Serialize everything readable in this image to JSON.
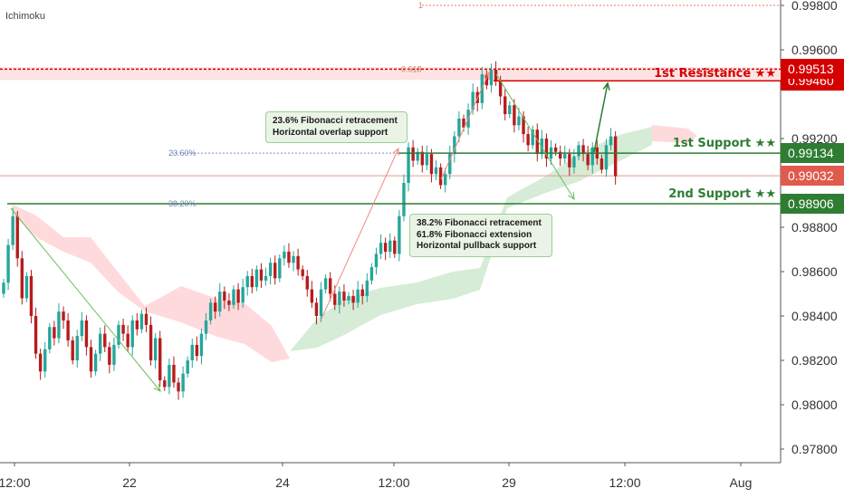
{
  "indicator_label": "Ichimoku",
  "colors": {
    "up": "#26a69a",
    "down": "#b71c1c",
    "resistance": "#d50000",
    "support": "#2e7d32",
    "current": "#e05a4e",
    "cloud_bull": "#c8e6c9",
    "cloud_bear": "#ffcdd2"
  },
  "chart_data": {
    "type": "candlestick",
    "title": "",
    "xlabel": "",
    "ylabel": "",
    "ylim": [
      0.9772,
      0.9982
    ],
    "x_ticks": [
      "12:00",
      "22",
      "24",
      "12:00",
      "29",
      "12:00",
      "Aug"
    ],
    "y_ticks": [
      "0.99800",
      "0.99600",
      "0.99200",
      "0.98800",
      "0.98600",
      "0.98400",
      "0.98200",
      "0.98000",
      "0.97800"
    ],
    "levels": [
      {
        "label": "1st Resistance ★★",
        "value": "0.99460",
        "line_value": 0.9946,
        "role": "resistance"
      },
      {
        "label": "",
        "value": "0.99513",
        "line_value": 0.99513,
        "role": "fib-618"
      },
      {
        "label": "1st Support ★★",
        "value": "0.99134",
        "line_value": 0.99134,
        "role": "support"
      },
      {
        "label": "",
        "value": "0.99032",
        "line_value": 0.99032,
        "role": "current"
      },
      {
        "label": "2nd Support ★★",
        "value": "0.98906",
        "line_value": 0.98906,
        "role": "support"
      }
    ],
    "fib_labels": [
      {
        "label": "1",
        "value": 0.998
      },
      {
        "label": "0.618",
        "value": 0.99513
      },
      {
        "label": "23.60%",
        "value": 0.99134
      },
      {
        "label": "38.20%",
        "value": 0.98906
      }
    ],
    "candles_close": [
      0.9855,
      0.9872,
      0.9885,
      0.9866,
      0.9848,
      0.9858,
      0.984,
      0.9823,
      0.9815,
      0.9825,
      0.9835,
      0.983,
      0.9842,
      0.9838,
      0.9829,
      0.982,
      0.9831,
      0.9838,
      0.9826,
      0.9815,
      0.9823,
      0.9832,
      0.9826,
      0.9818,
      0.9827,
      0.9836,
      0.9832,
      0.9826,
      0.9838,
      0.9834,
      0.9841,
      0.9836,
      0.982,
      0.983,
      0.9811,
      0.9808,
      0.9818,
      0.981,
      0.9806,
      0.9814,
      0.982,
      0.9827,
      0.9822,
      0.9832,
      0.9838,
      0.9846,
      0.9842,
      0.9851,
      0.9847,
      0.9845,
      0.9852,
      0.9846,
      0.9853,
      0.9858,
      0.9853,
      0.9861,
      0.9856,
      0.9858,
      0.9864,
      0.9857,
      0.9866,
      0.9869,
      0.9864,
      0.9867,
      0.9861,
      0.9858,
      0.9852,
      0.9846,
      0.984,
      0.9852,
      0.9857,
      0.985,
      0.9845,
      0.9851,
      0.9847,
      0.9849,
      0.9846,
      0.9852,
      0.9849,
      0.9856,
      0.9862,
      0.9868,
      0.9873,
      0.9869,
      0.9874,
      0.9868,
      0.9885,
      0.99,
      0.9916,
      0.991,
      0.9914,
      0.9908,
      0.9913,
      0.9904,
      0.9907,
      0.9899,
      0.9904,
      0.9913,
      0.9921,
      0.9929,
      0.9925,
      0.9933,
      0.9941,
      0.9936,
      0.9949,
      0.9944,
      0.9951,
      0.9946,
      0.9939,
      0.9931,
      0.9935,
      0.9926,
      0.993,
      0.9922,
      0.9917,
      0.9924,
      0.9913,
      0.992,
      0.9911,
      0.9916,
      0.9914,
      0.9911,
      0.9913,
      0.9907,
      0.9912,
      0.9917,
      0.9913,
      0.9908,
      0.9916,
      0.9911,
      0.9906,
      0.9917,
      0.9921,
      0.9903
    ],
    "annotations": [
      {
        "text_lines": [
          "23.6% Fibonacci retracement",
          "Horizontal overlap support"
        ]
      },
      {
        "text_lines": [
          "38.2% Fibonacci retracement",
          "61.8% Fibonacci extension",
          "Horizontal pullback support"
        ]
      }
    ]
  }
}
